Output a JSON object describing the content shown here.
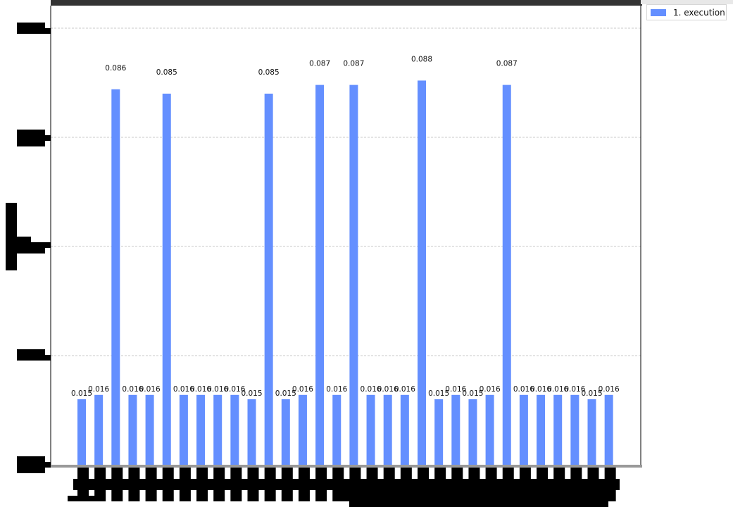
{
  "legend": {
    "label": "1. execution",
    "color": "#648fff"
  },
  "chart_data": {
    "type": "bar",
    "series": [
      {
        "name": "1. execution",
        "values": [
          0.015,
          0.016,
          0.086,
          0.016,
          0.016,
          0.085,
          0.016,
          0.016,
          0.016,
          0.016,
          0.015,
          0.085,
          0.015,
          0.016,
          0.087,
          0.016,
          0.087,
          0.016,
          0.016,
          0.016,
          0.088,
          0.015,
          0.016,
          0.015,
          0.016,
          0.087,
          0.016,
          0.016,
          0.016,
          0.016,
          0.015,
          0.016
        ],
        "labels": [
          "0.015",
          "0.016",
          "0.086",
          "0.016",
          "0.016",
          "0.085",
          "0.016",
          "0.016",
          "0.016",
          "0.016",
          "0.015",
          "0.085",
          "0.015",
          "0.016",
          "0.087",
          "0.016",
          "0.087",
          "0.016",
          "0.016",
          "0.016",
          "0.088",
          "0.015",
          "0.016",
          "0.015",
          "0.016",
          "0.087",
          "0.016",
          "0.016",
          "0.016",
          "0.016",
          "0.015",
          "0.016"
        ]
      }
    ],
    "ylim": [
      0,
      0.1
    ],
    "grid": "horizontal-dashed",
    "legend_position": "top-right",
    "bar_color": "#648fff"
  }
}
